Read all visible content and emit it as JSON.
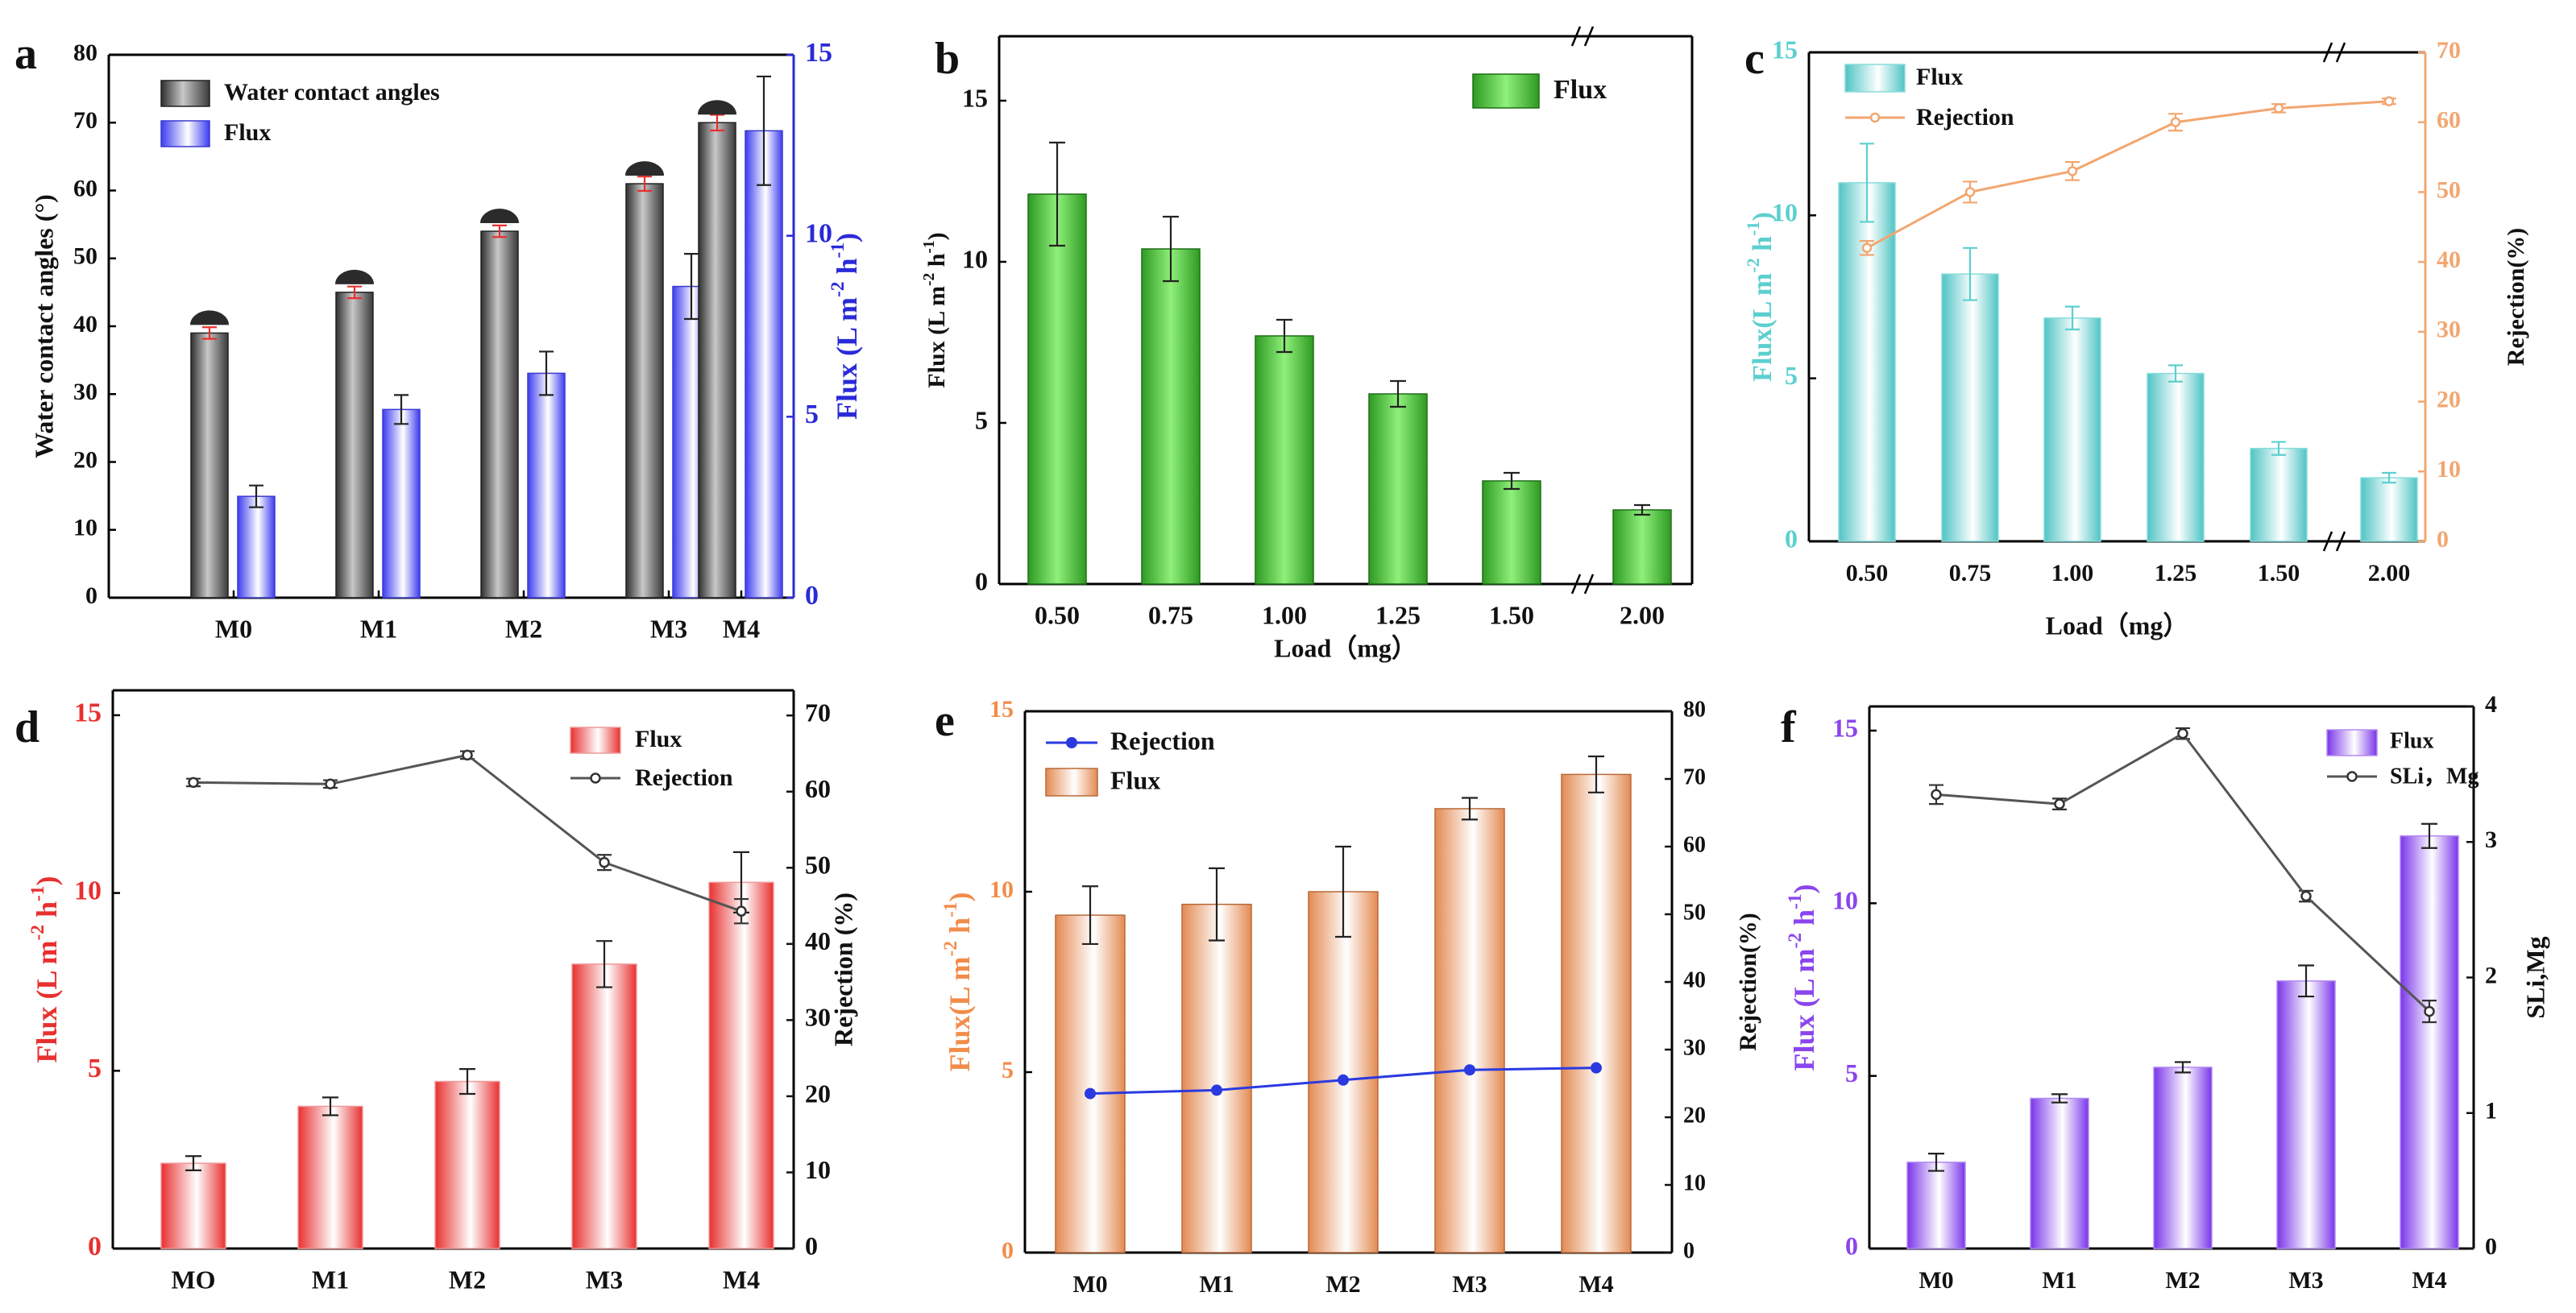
{
  "colors": {
    "gray": "#595959",
    "blue": "#2a2ad8",
    "green": "#4fd33c",
    "cyan": "#5ccfcf",
    "orange": "#f2a66f",
    "red": "#e8302f",
    "salmon": "#f28c4a",
    "purple": "#8a45ee",
    "line_gray": "#555555",
    "line_blue": "#2a3ae0"
  },
  "chart_data": [
    {
      "panel": "a",
      "type": "bar",
      "categories": [
        "M0",
        "M1",
        "M2",
        "M3",
        "M4"
      ],
      "left_axis": {
        "label": "Water contact angles (°)",
        "ylim": [
          0,
          80
        ],
        "ticks": [
          "0",
          "10",
          "20",
          "30",
          "40",
          "50",
          "60",
          "70",
          "80"
        ]
      },
      "right_axis": {
        "label": "Flux (L m⁻² h⁻¹)",
        "ylim": [
          0,
          15
        ],
        "ticks": [
          "0",
          "5",
          "10",
          "15"
        ]
      },
      "series": [
        {
          "name": "Water contact angles",
          "axis": "left",
          "values": [
            39,
            45,
            54,
            61,
            70
          ],
          "errors": [
            0.5,
            0.5,
            0.5,
            0.7,
            0.8
          ]
        },
        {
          "name": "Flux",
          "axis": "right",
          "values": [
            2.8,
            5.2,
            6.2,
            8.6,
            12.9
          ],
          "errors": [
            0.3,
            0.4,
            0.6,
            0.9,
            1.5
          ]
        }
      ]
    },
    {
      "panel": "b",
      "type": "bar",
      "categories": [
        "0.50",
        "0.75",
        "1.00",
        "1.25",
        "1.50",
        "2.00"
      ],
      "xlabel": "Load（mg）",
      "ylabel": "Flux (L m⁻² h⁻¹)",
      "ylim": [
        0,
        17
      ],
      "ticks": [
        "0",
        "5",
        "10",
        "15"
      ],
      "legend": "Flux",
      "series": [
        {
          "name": "Flux",
          "values": [
            12.1,
            10.4,
            7.7,
            5.9,
            3.2,
            2.3
          ],
          "errors": [
            1.6,
            1.0,
            0.5,
            0.4,
            0.25,
            0.15
          ]
        }
      ]
    },
    {
      "panel": "c",
      "type": "bar+line",
      "categories": [
        "0.50",
        "0.75",
        "1.00",
        "1.25",
        "1.50",
        "2.00"
      ],
      "xlabel": "Load（mg）",
      "left_axis": {
        "label": "Flux(L m⁻² h⁻¹)",
        "ylim": [
          0,
          15
        ],
        "ticks": [
          "0",
          "5",
          "10",
          "15"
        ]
      },
      "right_axis": {
        "label": "Rejection(%)",
        "ylim": [
          0,
          70
        ],
        "ticks": [
          "0",
          "10",
          "20",
          "30",
          "40",
          "50",
          "60",
          "70"
        ]
      },
      "series": [
        {
          "name": "Flux",
          "type": "bar",
          "values": [
            11.0,
            8.2,
            6.85,
            5.15,
            2.85,
            1.95
          ],
          "errors": [
            1.2,
            0.8,
            0.35,
            0.25,
            0.2,
            0.15
          ]
        },
        {
          "name": "Rejection",
          "type": "line",
          "values": [
            42,
            50,
            53,
            60,
            62,
            63
          ],
          "errors": [
            1.0,
            1.5,
            1.3,
            1.2,
            0.6,
            0.4
          ]
        }
      ]
    },
    {
      "panel": "d",
      "type": "bar+line",
      "categories": [
        "MO",
        "M1",
        "M2",
        "M3",
        "M4"
      ],
      "left_axis": {
        "label": "Flux (L m⁻² h⁻¹)",
        "ylim": [
          0,
          15.7
        ],
        "ticks": [
          "0",
          "5",
          "10",
          "15"
        ]
      },
      "right_axis": {
        "label": "Rejection (%)",
        "ylim": [
          0,
          73.3
        ],
        "ticks": [
          "0",
          "10",
          "20",
          "30",
          "40",
          "50",
          "60",
          "70"
        ]
      },
      "series": [
        {
          "name": "Flux",
          "type": "bar",
          "values": [
            2.4,
            4.0,
            4.7,
            8.0,
            10.3
          ],
          "errors": [
            0.2,
            0.25,
            0.35,
            0.65,
            0.85
          ]
        },
        {
          "name": "Rejection",
          "type": "line",
          "values": [
            61.2,
            61.0,
            64.8,
            50.7,
            44.3
          ],
          "errors": [
            0.5,
            0.5,
            0.5,
            1.0,
            1.6
          ]
        }
      ]
    },
    {
      "panel": "e",
      "type": "bar+line",
      "categories": [
        "M0",
        "M1",
        "M2",
        "M3",
        "M4"
      ],
      "left_axis": {
        "label": "Flux(L m⁻² h⁻¹)",
        "ylim": [
          0,
          15
        ],
        "ticks": [
          "0",
          "5",
          "10",
          "15"
        ]
      },
      "right_axis": {
        "label": "Rejection(%)",
        "ylim": [
          0,
          80
        ],
        "ticks": [
          "0",
          "10",
          "20",
          "30",
          "40",
          "50",
          "60",
          "70",
          "80"
        ]
      },
      "series": [
        {
          "name": "Rejection",
          "type": "line",
          "values": [
            23.5,
            24.0,
            25.5,
            27.0,
            27.3
          ],
          "errors": [
            0,
            0,
            0,
            0,
            0
          ]
        },
        {
          "name": "Flux",
          "type": "bar",
          "values": [
            9.35,
            9.65,
            10.0,
            12.3,
            13.25
          ],
          "errors": [
            0.8,
            1.0,
            1.25,
            0.3,
            0.5
          ]
        }
      ]
    },
    {
      "panel": "f",
      "type": "bar+line",
      "categories": [
        "M0",
        "M1",
        "M2",
        "M3",
        "M4"
      ],
      "left_axis": {
        "label": "Flux (L m⁻² h⁻¹)",
        "ylim": [
          0,
          15.7
        ],
        "ticks": [
          "0",
          "5",
          "10",
          "15"
        ]
      },
      "right_axis": {
        "label": "SLi,Mg",
        "ylim": [
          0,
          4
        ],
        "ticks": [
          "0",
          "1",
          "2",
          "3",
          "4"
        ]
      },
      "series": [
        {
          "name": "Flux",
          "type": "bar",
          "values": [
            2.5,
            4.35,
            5.25,
            7.75,
            11.95
          ],
          "errors": [
            0.25,
            0.12,
            0.15,
            0.45,
            0.35
          ]
        },
        {
          "name": "SLi，Mg",
          "type": "line",
          "values": [
            3.35,
            3.28,
            3.8,
            2.6,
            1.75
          ],
          "errors": [
            0.07,
            0.04,
            0.04,
            0.04,
            0.08
          ]
        }
      ]
    }
  ]
}
